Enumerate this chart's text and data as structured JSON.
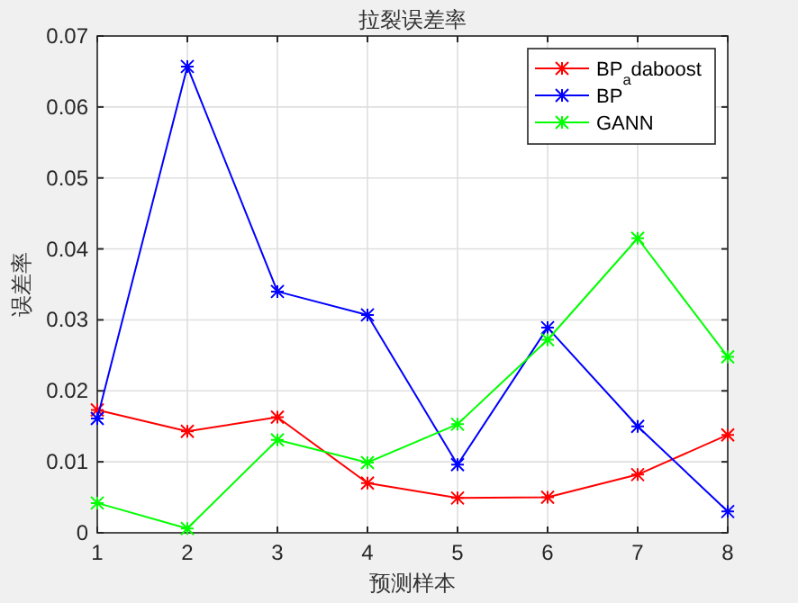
{
  "chart_data": {
    "type": "line",
    "title": "拉裂误差率",
    "xlabel": "预测样本",
    "ylabel": "误差率",
    "x": [
      1,
      2,
      3,
      4,
      5,
      6,
      7,
      8
    ],
    "series": [
      {
        "name": "BP$_{a}$daboost",
        "color": "#ff0000",
        "values": [
          0.0173,
          0.0143,
          0.0163,
          0.007,
          0.0049,
          0.005,
          0.0082,
          0.0138
        ]
      },
      {
        "name": "BP",
        "color": "#0000ff",
        "values": [
          0.0161,
          0.0657,
          0.034,
          0.0307,
          0.0096,
          0.0289,
          0.015,
          0.003
        ]
      },
      {
        "name": "GANN",
        "color": "#00ff00",
        "values": [
          0.0042,
          0.0006,
          0.0131,
          0.0099,
          0.0153,
          0.0272,
          0.0415,
          0.0248
        ]
      }
    ],
    "xlim": [
      1,
      8
    ],
    "xticks": [
      1,
      2,
      3,
      4,
      5,
      6,
      7,
      8
    ],
    "ylim": [
      0,
      0.07
    ],
    "yticks": [
      0,
      0.01,
      0.02,
      0.03,
      0.04,
      0.05,
      0.06,
      0.07
    ],
    "grid": true,
    "legend": "top right",
    "marker": "cross",
    "line_style": "solid"
  }
}
